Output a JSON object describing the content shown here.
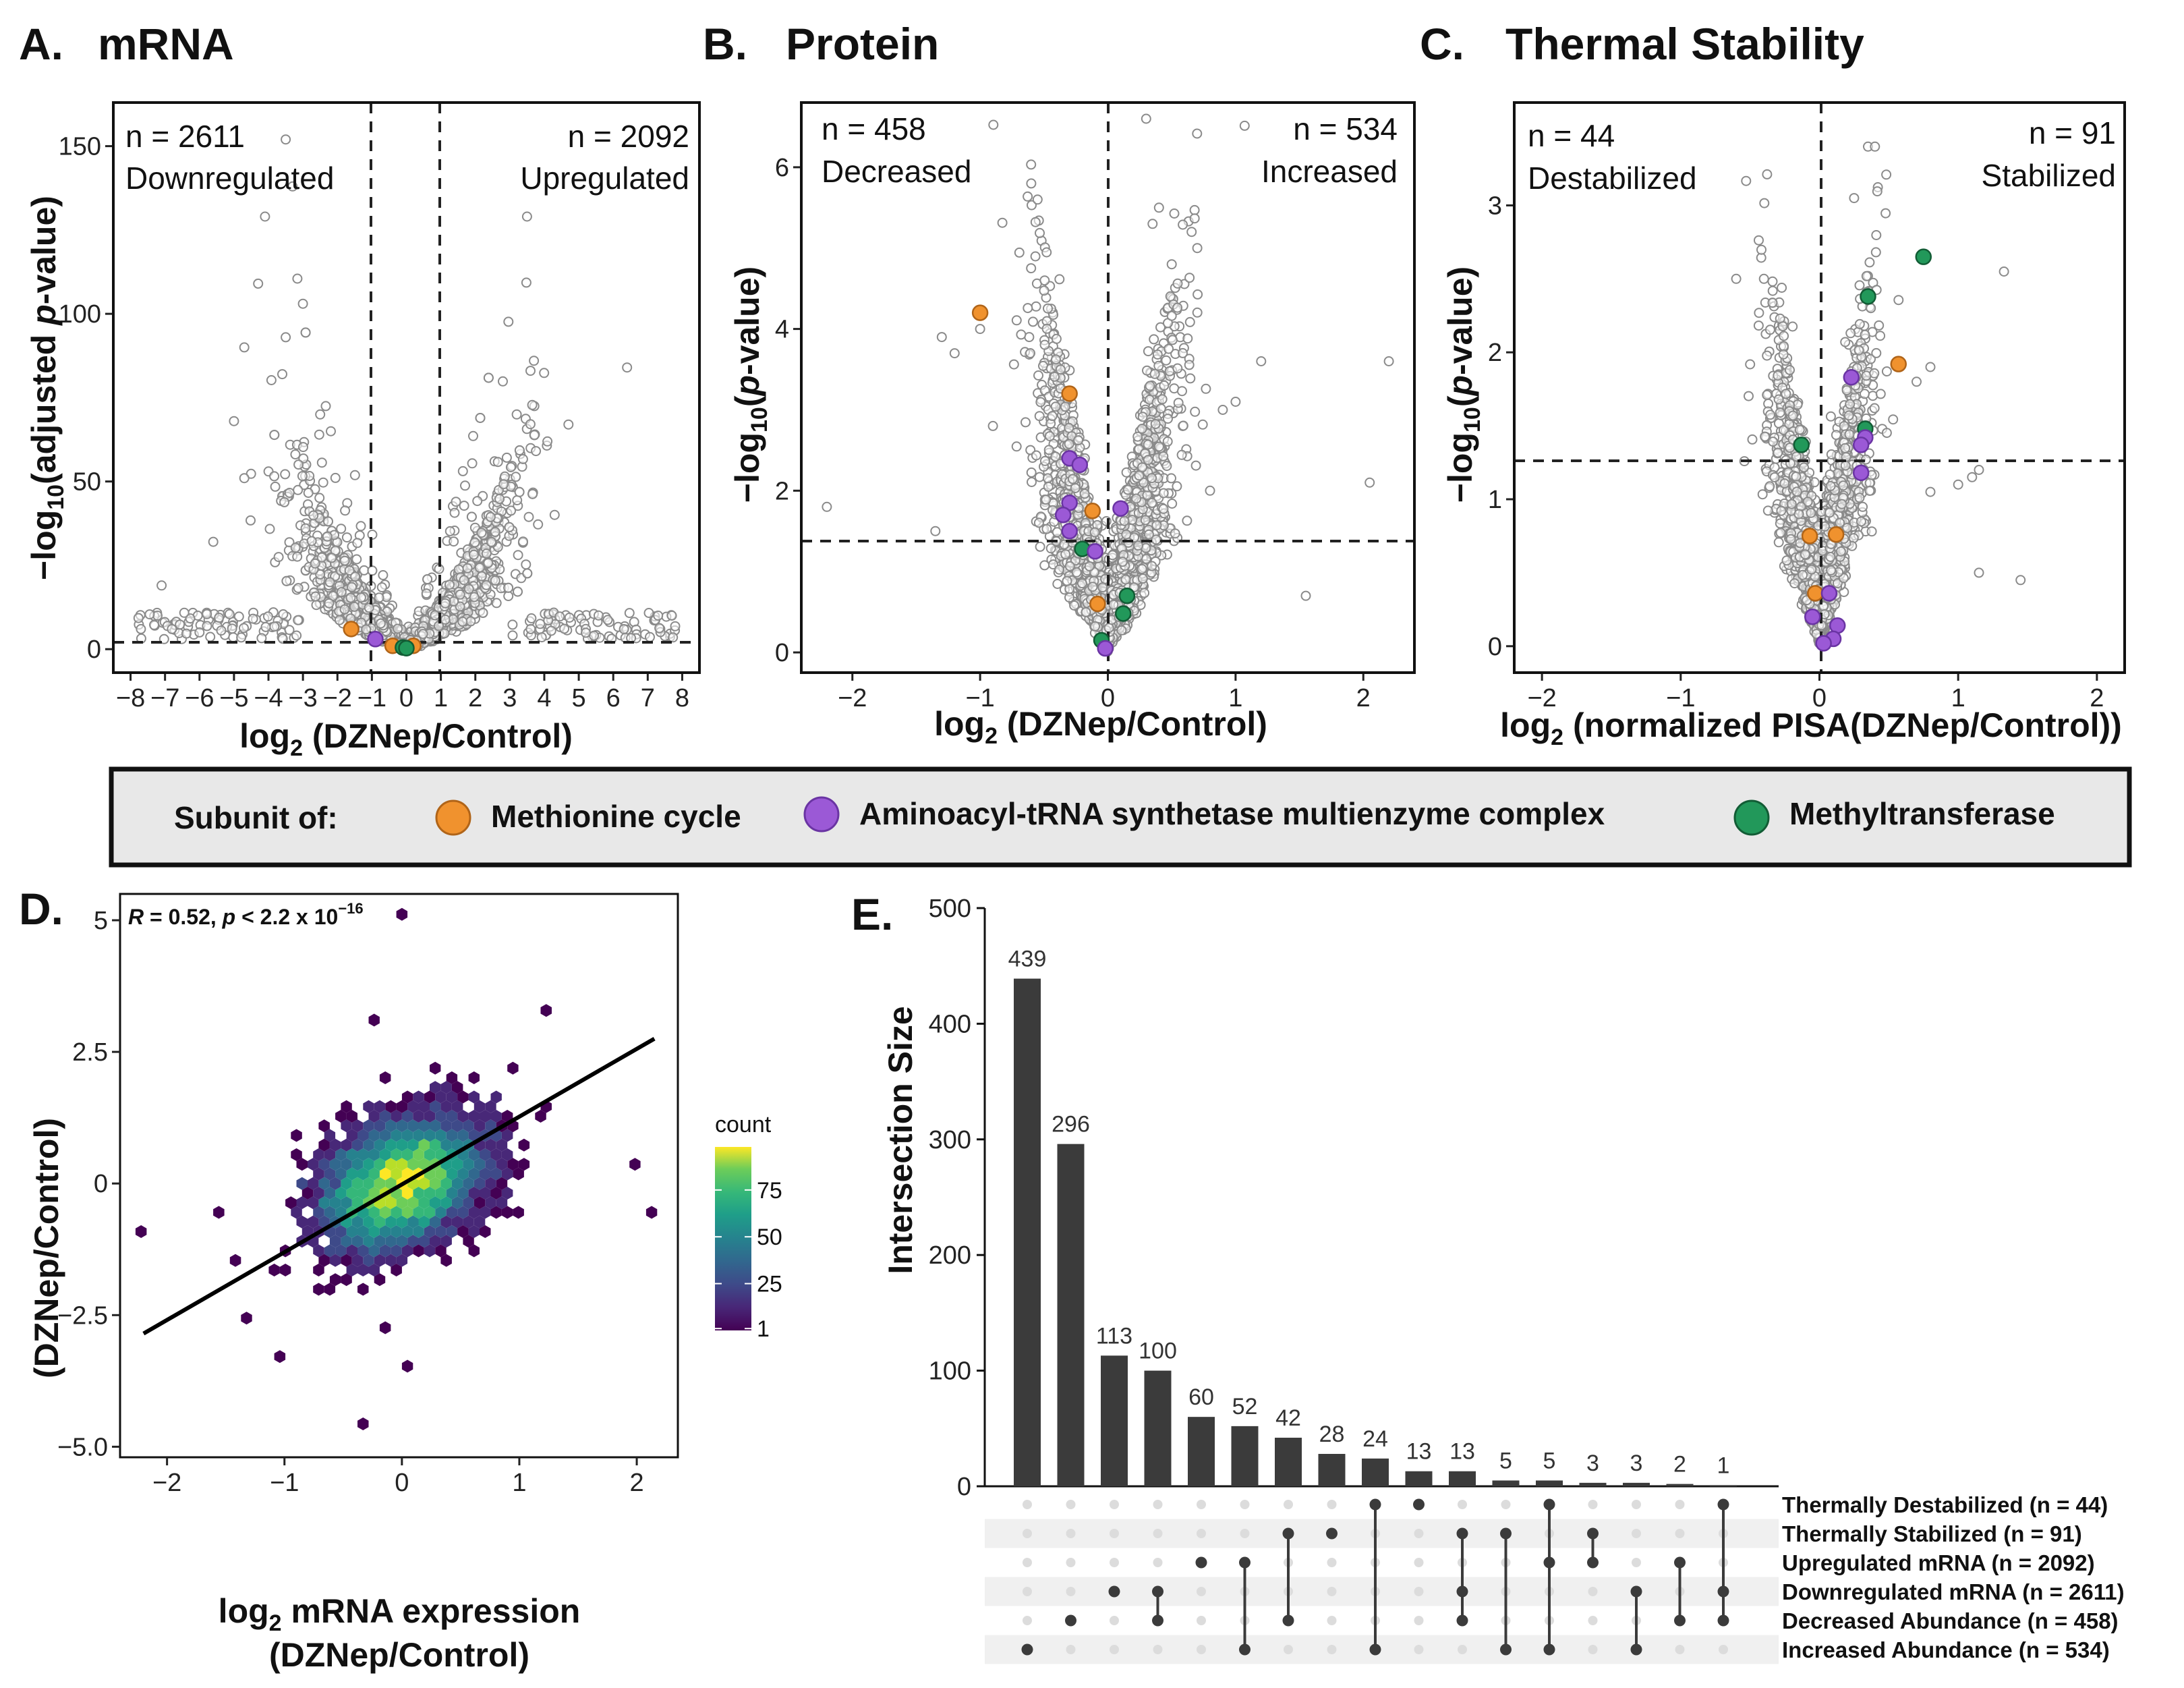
{
  "panel_a": {
    "letter": "A.",
    "title": "mRNA",
    "left_count": "n = 2611",
    "left_label": "Downregulated",
    "right_count": "n = 2092",
    "right_label": "Upregulated",
    "ylabel_pre": "−log",
    "ylabel_sub": "10",
    "ylabel_mid": "(adjusted ",
    "ylabel_ital": "p",
    "ylabel_post": "-value)",
    "xlabel_pre": "log",
    "xlabel_sub": "2",
    "xlabel_post": " (DZNep/Control)"
  },
  "panel_b": {
    "letter": "B.",
    "title": "Protein",
    "left_count": "n = 458",
    "left_label": "Decreased",
    "right_count": "n = 534",
    "right_label": "Increased",
    "ylabel_pre": "−log",
    "ylabel_sub": "10",
    "ylabel_mid": "(",
    "ylabel_ital": "p",
    "ylabel_post": "-value)",
    "xlabel_pre": "log",
    "xlabel_sub": "2",
    "xlabel_post": " (DZNep/Control)"
  },
  "panel_c": {
    "letter": "C.",
    "title": "Thermal Stability",
    "left_count": "n = 44",
    "left_label": "Destabilized",
    "right_count": "n = 91",
    "right_label": "Stabilized",
    "ylabel_pre": "−log",
    "ylabel_sub": "10",
    "ylabel_mid": "(",
    "ylabel_ital": "p",
    "ylabel_post": "-value)",
    "xlabel_pre": "log",
    "xlabel_sub": "2",
    "xlabel_post": " (normalized PISA(DZNep/Control))"
  },
  "legend": {
    "title": "Subunit of:",
    "items": [
      {
        "label": "Methionine cycle",
        "color": "#F0922E"
      },
      {
        "label": "Aminoacyl-tRNA synthetase multienzyme complex",
        "color": "#9B59D6"
      },
      {
        "label": "Methyltransferase",
        "color": "#22985A"
      }
    ]
  },
  "panel_d": {
    "letter": "D.",
    "corr_R": "R",
    "corr_mid": " = 0.52, ",
    "corr_p": "p",
    "corr_rest": " < 2.2 x 10",
    "corr_exp": "−16",
    "ylabel": "(DZNep/Control)",
    "xlabel_pre": "log",
    "xlabel_sub": "2",
    "xlabel_post": " mRNA expression",
    "xlabel_line2": "(DZNep/Control)",
    "colorbar_title": "count"
  },
  "panel_e": {
    "letter": "E.",
    "ylabel": "Intersection Size"
  },
  "chart_data": [
    {
      "type": "scatter",
      "id": "A",
      "title": "mRNA",
      "xlabel": "log2 (DZNep/Control)",
      "ylabel": "−log10(adjusted p-value)",
      "xlim": [
        -8.5,
        8.5
      ],
      "ylim": [
        -7,
        163
      ],
      "xticks": [
        -8,
        -7,
        -6,
        -5,
        -4,
        -3,
        -2,
        -1,
        0,
        1,
        2,
        3,
        4,
        5,
        6,
        7,
        8
      ],
      "yticks": [
        0,
        50,
        100,
        150
      ],
      "vlines": [
        -1,
        1
      ],
      "hline": 1.3,
      "annotations": [
        "n = 2611 Downregulated",
        "n = 2092 Upregulated"
      ],
      "highlight_points": [
        {
          "x": -1.6,
          "y": 6,
          "group": "Methionine cycle"
        },
        {
          "x": -0.9,
          "y": 3,
          "group": "Aminoacyl-tRNA synthetase multienzyme complex"
        },
        {
          "x": -0.4,
          "y": 1,
          "group": "Methionine cycle"
        },
        {
          "x": -0.1,
          "y": 0.5,
          "group": "Methyltransferase"
        },
        {
          "x": 0.2,
          "y": 1,
          "group": "Methionine cycle"
        },
        {
          "x": 0.0,
          "y": 0.3,
          "group": "Methyltransferase"
        }
      ]
    },
    {
      "type": "scatter",
      "id": "B",
      "title": "Protein",
      "xlabel": "log2 (DZNep/Control)",
      "ylabel": "−log10(p-value)",
      "xlim": [
        -2.4,
        2.4
      ],
      "ylim": [
        -0.25,
        6.8
      ],
      "xticks": [
        -2,
        -1,
        0,
        1,
        2
      ],
      "yticks": [
        0,
        2,
        4,
        6
      ],
      "vlines": [
        0
      ],
      "hline": 1.3,
      "annotations": [
        "n = 458 Decreased",
        "n = 534 Increased"
      ],
      "highlight_points": [
        {
          "x": -1.0,
          "y": 4.2,
          "group": "Methionine cycle"
        },
        {
          "x": -0.3,
          "y": 3.2,
          "group": "Methionine cycle"
        },
        {
          "x": -0.3,
          "y": 2.4,
          "group": "Aminoacyl-tRNA synthetase multienzyme complex"
        },
        {
          "x": -0.22,
          "y": 2.32,
          "group": "Aminoacyl-tRNA synthetase multienzyme complex"
        },
        {
          "x": -0.3,
          "y": 1.85,
          "group": "Aminoacyl-tRNA synthetase multienzyme complex"
        },
        {
          "x": -0.35,
          "y": 1.7,
          "group": "Aminoacyl-tRNA synthetase multienzyme complex"
        },
        {
          "x": -0.3,
          "y": 1.5,
          "group": "Aminoacyl-tRNA synthetase multienzyme complex"
        },
        {
          "x": -0.12,
          "y": 1.75,
          "group": "Methionine cycle"
        },
        {
          "x": 0.1,
          "y": 1.78,
          "group": "Aminoacyl-tRNA synthetase multienzyme complex"
        },
        {
          "x": -0.2,
          "y": 1.28,
          "group": "Methyltransferase"
        },
        {
          "x": -0.1,
          "y": 1.25,
          "group": "Aminoacyl-tRNA synthetase multienzyme complex"
        },
        {
          "x": -0.08,
          "y": 0.6,
          "group": "Methionine cycle"
        },
        {
          "x": 0.15,
          "y": 0.7,
          "group": "Methyltransferase"
        },
        {
          "x": 0.12,
          "y": 0.48,
          "group": "Methyltransferase"
        },
        {
          "x": -0.05,
          "y": 0.15,
          "group": "Methyltransferase"
        },
        {
          "x": -0.02,
          "y": 0.05,
          "group": "Aminoacyl-tRNA synthetase multienzyme complex"
        }
      ]
    },
    {
      "type": "scatter",
      "id": "C",
      "title": "Thermal Stability",
      "xlabel": "log2 (normalized PISA(DZNep/Control))",
      "ylabel": "−log10(p-value)",
      "xlim": [
        -2.2,
        2.2
      ],
      "ylim": [
        -0.18,
        3.7
      ],
      "xticks": [
        -2,
        -1,
        0,
        1,
        2
      ],
      "yticks": [
        0,
        1,
        2,
        3
      ],
      "vlines": [
        0
      ],
      "hline": 1.3,
      "annotations": [
        "n = 44 Destabilized",
        "n = 91 Stabilized"
      ],
      "highlight_points": [
        {
          "x": 0.75,
          "y": 2.65,
          "group": "Methyltransferase"
        },
        {
          "x": 0.35,
          "y": 2.38,
          "group": "Methyltransferase"
        },
        {
          "x": 0.57,
          "y": 1.92,
          "group": "Methionine cycle"
        },
        {
          "x": 0.23,
          "y": 1.83,
          "group": "Aminoacyl-tRNA synthetase multienzyme complex"
        },
        {
          "x": 0.33,
          "y": 1.48,
          "group": "Methyltransferase"
        },
        {
          "x": 0.33,
          "y": 1.42,
          "group": "Aminoacyl-tRNA synthetase multienzyme complex"
        },
        {
          "x": 0.3,
          "y": 1.37,
          "group": "Aminoacyl-tRNA synthetase multienzyme complex"
        },
        {
          "x": -0.13,
          "y": 1.37,
          "group": "Methyltransferase"
        },
        {
          "x": 0.3,
          "y": 1.18,
          "group": "Aminoacyl-tRNA synthetase multienzyme complex"
        },
        {
          "x": -0.07,
          "y": 0.75,
          "group": "Methionine cycle"
        },
        {
          "x": 0.12,
          "y": 0.76,
          "group": "Methionine cycle"
        },
        {
          "x": -0.03,
          "y": 0.36,
          "group": "Methionine cycle"
        },
        {
          "x": 0.07,
          "y": 0.36,
          "group": "Aminoacyl-tRNA synthetase multienzyme complex"
        },
        {
          "x": -0.05,
          "y": 0.2,
          "group": "Aminoacyl-tRNA synthetase multienzyme complex"
        },
        {
          "x": 0.13,
          "y": 0.14,
          "group": "Aminoacyl-tRNA synthetase multienzyme complex"
        },
        {
          "x": 0.1,
          "y": 0.05,
          "group": "Aminoacyl-tRNA synthetase multienzyme complex"
        },
        {
          "x": 0.03,
          "y": 0.02,
          "group": "Aminoacyl-tRNA synthetase multienzyme complex"
        }
      ]
    },
    {
      "type": "heatmap",
      "subtype": "hexbin",
      "id": "D",
      "xlabel": "log2 mRNA expression (DZNep/Control)",
      "ylabel": "(DZNep/Control)",
      "xlim": [
        -2.4,
        2.35
      ],
      "ylim": [
        -5.2,
        5.5
      ],
      "xticks": [
        -2,
        -1,
        0,
        1,
        2
      ],
      "yticks": [
        -5.0,
        -2.5,
        0,
        2.5,
        5
      ],
      "ytick_labels": [
        "−5.0",
        "−2.5",
        "0",
        "2.5",
        "5"
      ],
      "annotation": "R = 0.52, p < 2.2 x 10−16",
      "regression_line": {
        "x0": -2.2,
        "y0": -2.85,
        "x1": 2.15,
        "y1": 2.75
      },
      "colorbar": {
        "title": "count",
        "ticks": [
          1,
          25,
          50,
          75
        ],
        "max": 98
      },
      "outlier_points": [
        {
          "x": -2.2,
          "y": -1.0
        },
        {
          "x": 1.2,
          "y": 3.3
        },
        {
          "x": 0.0,
          "y": 5.2
        },
        {
          "x": 2.0,
          "y": 0.4
        },
        {
          "x": 2.15,
          "y": -0.5
        },
        {
          "x": 0.0,
          "y": -3.4
        },
        {
          "x": -0.3,
          "y": -4.6
        },
        {
          "x": -1.3,
          "y": -2.5
        },
        {
          "x": -1.4,
          "y": -1.5
        },
        {
          "x": -1.05,
          "y": -3.2
        },
        {
          "x": 0.9,
          "y": 2.2
        },
        {
          "x": -0.2,
          "y": 3.1
        }
      ]
    },
    {
      "type": "bar",
      "subtype": "upset",
      "id": "E",
      "ylabel": "Intersection Size",
      "ylim": [
        0,
        500
      ],
      "yticks": [
        0,
        100,
        200,
        300,
        400,
        500
      ],
      "values": [
        439,
        296,
        113,
        100,
        60,
        52,
        42,
        28,
        24,
        13,
        13,
        5,
        5,
        3,
        3,
        2,
        1
      ],
      "sets": [
        "Thermally Destabilized (n = 44)",
        "Thermally Stabilized (n = 91)",
        "Upregulated mRNA (n = 2092)",
        "Downregulated mRNA (n = 2611)",
        "Decreased Abundance (n = 458)",
        "Increased Abundance (n = 534)"
      ],
      "memberships": [
        [
          5
        ],
        [
          4
        ],
        [
          3
        ],
        [
          3,
          4
        ],
        [
          2
        ],
        [
          2,
          5
        ],
        [
          1,
          4
        ],
        [
          1
        ],
        [
          0,
          5
        ],
        [
          0
        ],
        [
          1,
          3,
          4
        ],
        [
          1,
          5
        ],
        [
          0,
          2,
          5
        ],
        [
          1,
          2
        ],
        [
          3,
          5
        ],
        [
          2,
          4
        ],
        [
          0,
          3,
          4
        ]
      ]
    }
  ]
}
